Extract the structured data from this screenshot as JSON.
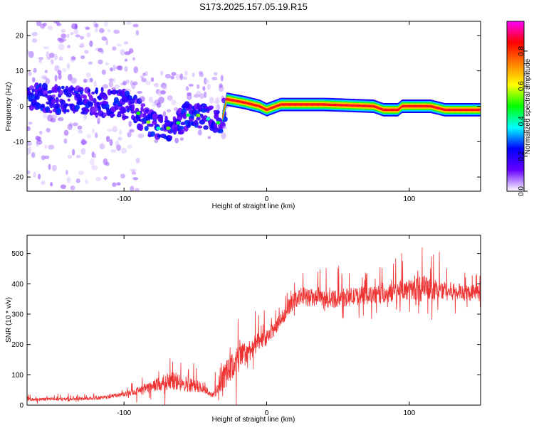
{
  "title": "S173.2025.157.05.19.R15",
  "chart_data": [
    {
      "type": "heatmap",
      "xlabel": "Height of straight line (km)",
      "ylabel": "Frequency (Hz)",
      "xlim": [
        -168,
        150
      ],
      "ylim": [
        -24,
        24
      ],
      "xticks": [
        -100,
        0,
        100
      ],
      "yticks": [
        20,
        10,
        0,
        -10,
        -20
      ],
      "grid": false,
      "ridge_frequency_hz": [
        {
          "x": -168,
          "y": 2.5
        },
        {
          "x": -140,
          "y": 2
        },
        {
          "x": -110,
          "y": 1
        },
        {
          "x": -95,
          "y": 0
        },
        {
          "x": -85,
          "y": -4
        },
        {
          "x": -75,
          "y": -6.5
        },
        {
          "x": -65,
          "y": -6
        },
        {
          "x": -58,
          "y": -3
        },
        {
          "x": -52,
          "y": -2
        },
        {
          "x": -45,
          "y": -3
        },
        {
          "x": -38,
          "y": -4
        },
        {
          "x": -32,
          "y": -5
        },
        {
          "x": -28,
          "y": 2
        },
        {
          "x": -15,
          "y": 1
        },
        {
          "x": -5,
          "y": 0
        },
        {
          "x": 0,
          "y": -1
        },
        {
          "x": 10,
          "y": 0.5
        },
        {
          "x": 40,
          "y": 0.5
        },
        {
          "x": 75,
          "y": 0
        },
        {
          "x": 82,
          "y": -1
        },
        {
          "x": 92,
          "y": -1
        },
        {
          "x": 95,
          "y": 0
        },
        {
          "x": 115,
          "y": 0
        },
        {
          "x": 125,
          "y": -1
        },
        {
          "x": 150,
          "y": -1
        }
      ],
      "colorbar": {
        "label": "Normalized spectral amplitude",
        "range": [
          0,
          0.97
        ],
        "ticks": [
          0.0,
          0.2,
          0.4,
          0.6,
          0.8
        ],
        "tick_labels": [
          "0.0",
          "0.2",
          "0.4",
          "0.6",
          "0.8"
        ],
        "colors": [
          "#ffffff",
          "#6600ff",
          "#0000ff",
          "#00ffff",
          "#00ff00",
          "#ffff00",
          "#ff8000",
          "#ff0000",
          "#ff00ff"
        ]
      }
    },
    {
      "type": "line",
      "xlabel": "Height of straight line (km)",
      "ylabel": "SNR (10 * v/v)",
      "xlim": [
        -168,
        150
      ],
      "ylim": [
        0,
        560
      ],
      "xticks": [
        -100,
        0,
        100
      ],
      "yticks": [
        0,
        100,
        200,
        300,
        400,
        500
      ],
      "grid": false,
      "series": [
        {
          "color": "#ee3333",
          "x": [
            -168,
            -150,
            -130,
            -115,
            -100,
            -90,
            -80,
            -72,
            -65,
            -58,
            -50,
            -44,
            -40,
            -38,
            -34,
            -30,
            -25,
            -20,
            -15,
            -10,
            -5,
            0,
            5,
            10,
            15,
            20,
            25,
            30,
            40,
            50,
            60,
            70,
            80,
            90,
            100,
            110,
            120,
            130,
            140,
            150
          ],
          "values": [
            18,
            20,
            20,
            25,
            35,
            48,
            60,
            75,
            80,
            72,
            65,
            55,
            40,
            30,
            60,
            95,
            120,
            150,
            170,
            190,
            210,
            220,
            250,
            280,
            320,
            350,
            360,
            355,
            345,
            352,
            358,
            360,
            365,
            372,
            380,
            385,
            380,
            375,
            372,
            370
          ],
          "spread": [
            10,
            10,
            10,
            12,
            15,
            25,
            40,
            60,
            60,
            55,
            45,
            30,
            25,
            20,
            60,
            90,
            90,
            100,
            80,
            70,
            60,
            50,
            50,
            50,
            50,
            60,
            60,
            60,
            60,
            60,
            60,
            60,
            60,
            65,
            70,
            90,
            70,
            60,
            55,
            55
          ]
        }
      ]
    }
  ]
}
